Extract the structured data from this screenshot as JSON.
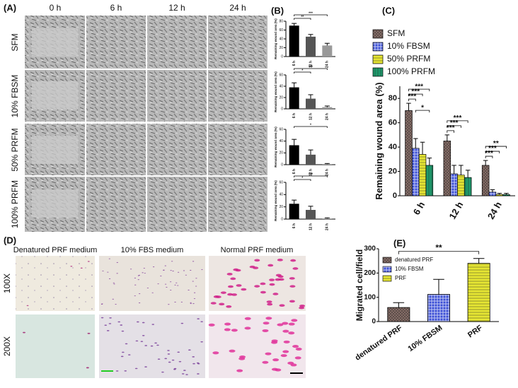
{
  "panel_labels": [
    "(A)",
    "(B)",
    "(C)",
    "(D)",
    "(E)"
  ],
  "wound_images": {
    "columns": [
      "0 h",
      "6 h",
      "12 h",
      "24 h"
    ],
    "rows": [
      "SFM",
      "10% FBSM",
      "50% PRFM",
      "100% PRFM"
    ]
  },
  "transwell_images": {
    "columns": [
      "Denatured PRF medium",
      "10% FBS medium",
      "Normal PRF medium"
    ],
    "rows": [
      "100X",
      "200X"
    ]
  },
  "chart_data": [
    {
      "type": "bar",
      "ylabel": "Remaining wound area (%)",
      "categories": [
        "6 h",
        "12 h",
        "24 h"
      ],
      "values": [
        70,
        45,
        25
      ],
      "errors": [
        5,
        5,
        5
      ],
      "colors": [
        "#000000",
        "#555555",
        "#999999"
      ],
      "ylim": [
        0,
        80
      ],
      "yticks": [
        0,
        20,
        40,
        60,
        80
      ],
      "annotations": [
        "**",
        "***"
      ]
    },
    {
      "type": "bar",
      "ylabel": "Remaining wound area (%)",
      "categories": [
        "6 h",
        "12 h",
        "24 h"
      ],
      "values": [
        38,
        18,
        3
      ],
      "errors": [
        8,
        7,
        2
      ],
      "colors": [
        "#000000",
        "#555555",
        "#999999"
      ],
      "ylim": [
        0,
        60
      ],
      "yticks": [
        0,
        20,
        40,
        60
      ],
      "annotations": [
        "*",
        "***"
      ]
    },
    {
      "type": "bar",
      "ylabel": "Remaining wound area (%)",
      "categories": [
        "6 h",
        "12 h",
        "24 h"
      ],
      "values": [
        33,
        17,
        1
      ],
      "errors": [
        10,
        8,
        1
      ],
      "colors": [
        "#000000",
        "#555555",
        "#999999"
      ],
      "ylim": [
        0,
        60
      ],
      "yticks": [
        0,
        20,
        40,
        60
      ],
      "annotations": [
        "*"
      ]
    },
    {
      "type": "bar",
      "ylabel": "Remaining wound area (%)",
      "categories": [
        "6 h",
        "12 h",
        "24 h"
      ],
      "values": [
        25,
        15,
        1
      ],
      "errors": [
        6,
        6,
        1
      ],
      "colors": [
        "#000000",
        "#555555",
        "#999999"
      ],
      "ylim": [
        0,
        60
      ],
      "yticks": [
        0,
        20,
        40,
        60
      ],
      "annotations": [
        "*",
        "***"
      ]
    },
    {
      "type": "grouped-bar",
      "ylabel": "Remaining wound area (%)",
      "categories": [
        "6 h",
        "12 h",
        "24 h"
      ],
      "ylim": [
        0,
        90
      ],
      "yticks": [
        0,
        20,
        40,
        60,
        80
      ],
      "series": [
        {
          "name": "SFM",
          "color": "#8a706a",
          "values": [
            70,
            45,
            25
          ],
          "errors": [
            6,
            5,
            4
          ]
        },
        {
          "name": "10% FBSM",
          "color": "#3b4fd6",
          "values": [
            39,
            18,
            3
          ],
          "errors": [
            8,
            7,
            2
          ]
        },
        {
          "name": "50% PRFM",
          "color": "#e6e633",
          "values": [
            34,
            17,
            1
          ],
          "errors": [
            10,
            8,
            1
          ]
        },
        {
          "name": "100% PRFM",
          "color": "#1e9a6c",
          "values": [
            25,
            15,
            1
          ],
          "errors": [
            6,
            6,
            1
          ]
        }
      ],
      "annotations": [
        [
          "***",
          "***",
          "***",
          "*"
        ],
        [
          "***",
          "***",
          "***"
        ],
        [
          "***",
          "***",
          "**"
        ]
      ]
    },
    {
      "type": "bar",
      "ylabel": "Migrated cell/field",
      "categories": [
        "denatured PRF",
        "10% FBSM",
        "PRF"
      ],
      "values": [
        58,
        112,
        240
      ],
      "errors": [
        20,
        62,
        20
      ],
      "colors": [
        "#8a706a",
        "#3b4fd6",
        "#e6e633"
      ],
      "ylim": [
        0,
        300
      ],
      "yticks": [
        0,
        100,
        200,
        300
      ],
      "legend": true,
      "annotations": [
        "**"
      ]
    }
  ]
}
